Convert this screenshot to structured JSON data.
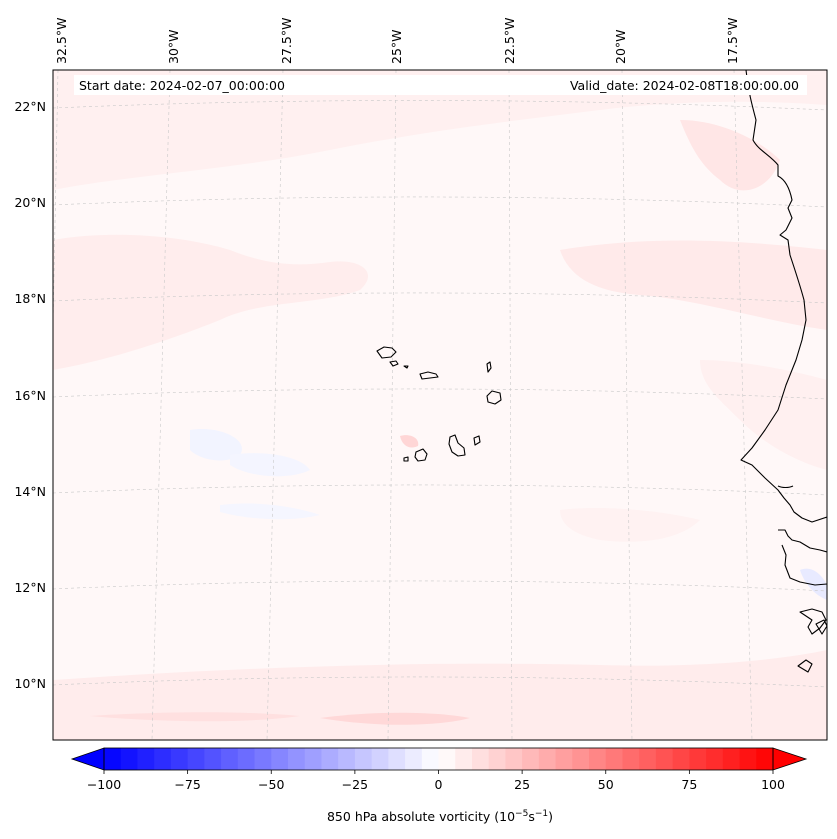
{
  "header": {
    "start_date": "Start date: 2024-02-07_00:00:00",
    "valid_date": "Valid_date: 2024-02-08T18:00:00.00"
  },
  "longitude_labels": [
    "32.5°W",
    "30°W",
    "27.5°W",
    "25°W",
    "22.5°W",
    "20°W",
    "17.5°W"
  ],
  "latitude_labels": [
    "22°N",
    "20°N",
    "18°N",
    "16°N",
    "14°N",
    "12°N",
    "10°N"
  ],
  "colorbar": {
    "ticks": [
      "−100",
      "−75",
      "−50",
      "−25",
      "0",
      "25",
      "50",
      "75",
      "100"
    ],
    "label_main": "850 hPa absolute vorticity (10",
    "label_exp1": "−5",
    "label_mid": "s",
    "label_exp2": "−1",
    "label_end": ")",
    "min": -100,
    "max": 100,
    "step": 5,
    "colormap": "bwr",
    "extend": "both"
  },
  "colors": {
    "background_field": "#fff8f8",
    "coastline": "#000000",
    "gridline": "#b0b0b0"
  }
}
